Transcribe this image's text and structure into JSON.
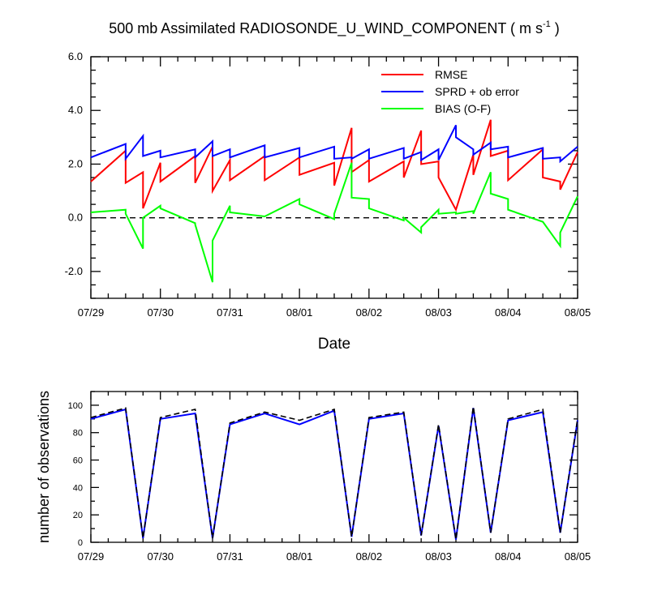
{
  "title": {
    "main": "500 mb Assimilated RADIOSONDE_U_WIND_COMPONENT ( m s",
    "sup": "-1",
    "end": " )"
  },
  "chart_data": [
    {
      "type": "line",
      "xlabel": "Date",
      "ylabel": "",
      "xlim": [
        0,
        7
      ],
      "ylim": [
        -3,
        6
      ],
      "xticks": [
        0,
        1,
        2,
        3,
        4,
        5,
        6,
        7
      ],
      "xtick_labels": [
        "07/29",
        "07/30",
        "07/31",
        "08/01",
        "08/02",
        "08/03",
        "08/04",
        "08/05"
      ],
      "yticks": [
        -2,
        0,
        2,
        4,
        6
      ],
      "ytick_labels": [
        "-2.0",
        "0.0",
        "2.0",
        "4.0",
        "6.0"
      ],
      "zero_line": true,
      "legend_position": "top-right",
      "series": [
        {
          "name": "RMSE",
          "color": "#ff0000",
          "points": [
            [
              0,
              1.35
            ],
            [
              0.5,
              2.5
            ],
            [
              0.5,
              1.3
            ],
            [
              0.75,
              1.7
            ],
            [
              0.75,
              0.35
            ],
            [
              1,
              2.05
            ],
            [
              1,
              1.35
            ],
            [
              1.5,
              2.3
            ],
            [
              1.5,
              1.3
            ],
            [
              1.75,
              2.65
            ],
            [
              1.75,
              1.0
            ],
            [
              2,
              2.15
            ],
            [
              2,
              1.4
            ],
            [
              2.5,
              2.3
            ],
            [
              2.5,
              1.4
            ],
            [
              3,
              2.25
            ],
            [
              3,
              1.6
            ],
            [
              3.5,
              2.05
            ],
            [
              3.5,
              1.2
            ],
            [
              3.75,
              3.35
            ],
            [
              3.75,
              1.7
            ],
            [
              4,
              2.15
            ],
            [
              4,
              1.35
            ],
            [
              4.5,
              2.1
            ],
            [
              4.5,
              1.5
            ],
            [
              4.75,
              3.25
            ],
            [
              4.75,
              2.0
            ],
            [
              5,
              2.1
            ],
            [
              5,
              1.5
            ],
            [
              5.25,
              0.3
            ],
            [
              5.5,
              2.35
            ],
            [
              5.5,
              1.6
            ],
            [
              5.75,
              3.65
            ],
            [
              5.75,
              2.3
            ],
            [
              6,
              2.5
            ],
            [
              6,
              1.4
            ],
            [
              6.5,
              2.55
            ],
            [
              6.5,
              1.5
            ],
            [
              6.75,
              1.35
            ],
            [
              6.75,
              1.05
            ],
            [
              7,
              2.45
            ]
          ]
        },
        {
          "name": "SPRD + ob error",
          "color": "#0000ff",
          "points": [
            [
              0,
              2.25
            ],
            [
              0.5,
              2.75
            ],
            [
              0.5,
              2.2
            ],
            [
              0.75,
              3.05
            ],
            [
              0.75,
              2.3
            ],
            [
              1,
              2.5
            ],
            [
              1,
              2.25
            ],
            [
              1.5,
              2.55
            ],
            [
              1.5,
              2.25
            ],
            [
              1.75,
              2.85
            ],
            [
              1.75,
              2.3
            ],
            [
              2,
              2.55
            ],
            [
              2,
              2.25
            ],
            [
              2.5,
              2.7
            ],
            [
              2.5,
              2.25
            ],
            [
              3,
              2.6
            ],
            [
              3,
              2.25
            ],
            [
              3.5,
              2.65
            ],
            [
              3.5,
              2.2
            ],
            [
              3.75,
              2.25
            ],
            [
              3.75,
              2.2
            ],
            [
              4,
              2.55
            ],
            [
              4,
              2.2
            ],
            [
              4.5,
              2.6
            ],
            [
              4.5,
              2.2
            ],
            [
              4.75,
              2.45
            ],
            [
              4.75,
              2.15
            ],
            [
              5,
              2.55
            ],
            [
              5,
              2.15
            ],
            [
              5.25,
              3.45
            ],
            [
              5.25,
              3.0
            ],
            [
              5.5,
              2.55
            ],
            [
              5.5,
              2.35
            ],
            [
              5.75,
              2.8
            ],
            [
              5.75,
              2.55
            ],
            [
              6,
              2.65
            ],
            [
              6,
              2.25
            ],
            [
              6.5,
              2.6
            ],
            [
              6.5,
              2.2
            ],
            [
              6.75,
              2.25
            ],
            [
              6.75,
              2.1
            ],
            [
              7,
              2.65
            ]
          ]
        },
        {
          "name": "BIAS (O-F)",
          "color": "#00ff00",
          "points": [
            [
              0,
              0.2
            ],
            [
              0.5,
              0.3
            ],
            [
              0.5,
              0.15
            ],
            [
              0.75,
              -1.15
            ],
            [
              0.75,
              0.0
            ],
            [
              1,
              0.45
            ],
            [
              1,
              0.35
            ],
            [
              1.5,
              -0.2
            ],
            [
              1.5,
              -0.25
            ],
            [
              1.75,
              -2.4
            ],
            [
              1.75,
              -0.85
            ],
            [
              2,
              0.45
            ],
            [
              2,
              0.2
            ],
            [
              2.5,
              0.05
            ],
            [
              3,
              0.7
            ],
            [
              3,
              0.5
            ],
            [
              3.5,
              -0.05
            ],
            [
              3.5,
              0.15
            ],
            [
              3.75,
              2.05
            ],
            [
              3.75,
              0.75
            ],
            [
              4,
              0.7
            ],
            [
              4,
              0.35
            ],
            [
              4.5,
              -0.1
            ],
            [
              4.5,
              0.0
            ],
            [
              4.75,
              -0.55
            ],
            [
              4.75,
              -0.35
            ],
            [
              5,
              0.3
            ],
            [
              5,
              0.15
            ],
            [
              5.25,
              0.2
            ],
            [
              5.25,
              0.15
            ],
            [
              5.5,
              0.25
            ],
            [
              5.5,
              0.15
            ],
            [
              5.75,
              1.7
            ],
            [
              5.75,
              0.9
            ],
            [
              6,
              0.7
            ],
            [
              6,
              0.3
            ],
            [
              6.5,
              -0.15
            ],
            [
              6.75,
              -1.05
            ],
            [
              6.75,
              -0.55
            ],
            [
              7,
              0.8
            ]
          ]
        }
      ]
    },
    {
      "type": "line",
      "xlabel": "",
      "ylabel": "number of observations",
      "xlim": [
        0,
        7
      ],
      "ylim": [
        0,
        110
      ],
      "xticks": [
        0,
        1,
        2,
        3,
        4,
        5,
        6,
        7
      ],
      "xtick_labels": [
        "07/29",
        "07/30",
        "07/31",
        "08/01",
        "08/02",
        "08/03",
        "08/04",
        "08/05"
      ],
      "yticks": [
        0,
        20,
        40,
        60,
        80,
        100
      ],
      "ytick_labels": [
        "0",
        "20",
        "40",
        "60",
        "80",
        "100"
      ],
      "series": [
        {
          "name": "",
          "color": "#0000ff",
          "style": "solid",
          "points": [
            [
              0,
              90
            ],
            [
              0.5,
              97
            ],
            [
              0.75,
              3
            ],
            [
              1,
              90
            ],
            [
              1.5,
              94
            ],
            [
              1.75,
              3
            ],
            [
              2,
              86
            ],
            [
              2.5,
              94
            ],
            [
              3,
              86
            ],
            [
              3.5,
              96
            ],
            [
              3.75,
              4
            ],
            [
              4,
              90
            ],
            [
              4.5,
              94
            ],
            [
              4.75,
              5
            ],
            [
              5,
              85
            ],
            [
              5.25,
              2
            ],
            [
              5.5,
              98
            ],
            [
              5.75,
              7
            ],
            [
              6,
              89
            ],
            [
              6.5,
              95
            ],
            [
              6.75,
              7
            ],
            [
              7,
              89
            ]
          ]
        },
        {
          "name": "",
          "color": "#000000",
          "style": "dashed",
          "points": [
            [
              0,
              91
            ],
            [
              0.5,
              98
            ],
            [
              0.75,
              3
            ],
            [
              1,
              91
            ],
            [
              1.5,
              97
            ],
            [
              1.75,
              3
            ],
            [
              2,
              87
            ],
            [
              2.5,
              95
            ],
            [
              3,
              89
            ],
            [
              3.5,
              97
            ],
            [
              3.75,
              4
            ],
            [
              4,
              91
            ],
            [
              4.5,
              95
            ],
            [
              4.75,
              5
            ],
            [
              5,
              86
            ],
            [
              5.25,
              2
            ],
            [
              5.5,
              99
            ],
            [
              5.75,
              7
            ],
            [
              6,
              90
            ],
            [
              6.5,
              97
            ],
            [
              6.75,
              7
            ],
            [
              7,
              90
            ]
          ]
        }
      ]
    }
  ]
}
